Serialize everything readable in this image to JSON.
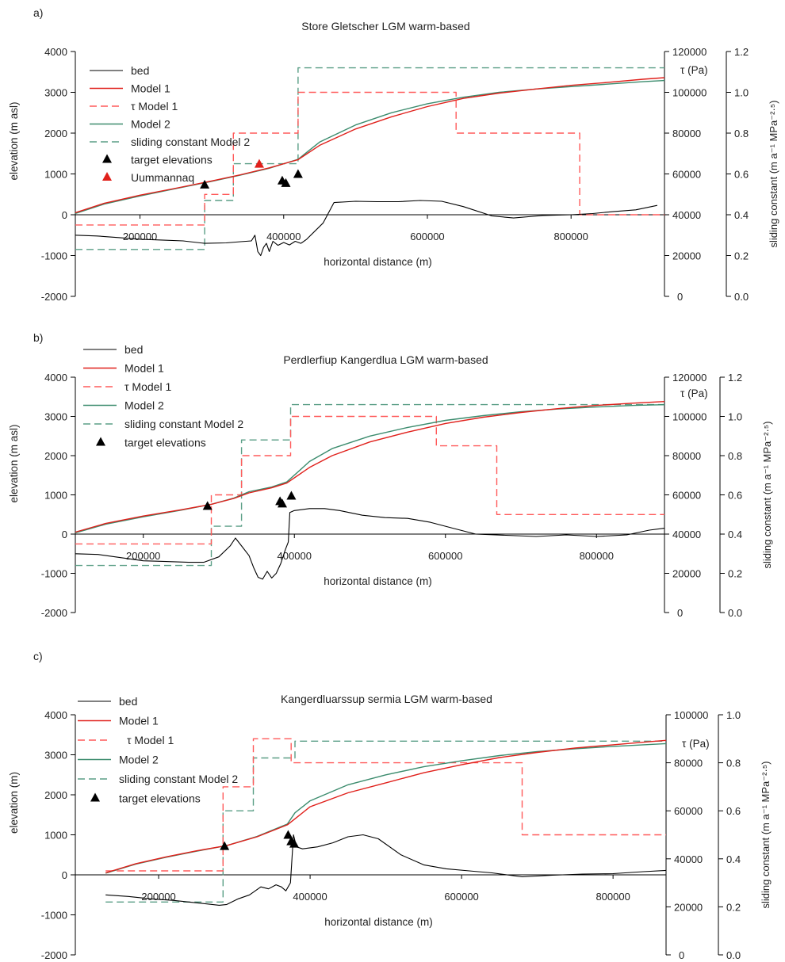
{
  "colors": {
    "bed": "#000000",
    "model1": "#e0201b",
    "tau": "#ff5a5a",
    "model2": "#3c8c6e",
    "sliding": "#5a9e86",
    "target": "#000000",
    "uummannaq": "#e0201b"
  },
  "chart_data": [
    {
      "type": "line",
      "panel_label": "a)",
      "title": "Store Gletscher LGM warm-based",
      "xlabel": "horizontal distance (m)",
      "ylabel": "elevation (m asl)",
      "ylabel_tau": "τ (Pa)",
      "ylabel_sliding": "sliding constant (m a⁻¹ MPa⁻²·⁵)",
      "xlim": [
        110000,
        930000
      ],
      "ylim": [
        -2000,
        4000
      ],
      "tau_lim": [
        0,
        120000
      ],
      "sliding_lim": [
        0,
        1.2
      ],
      "x_ticks": [
        200000,
        400000,
        600000,
        800000
      ],
      "x_tick_labels": [
        "200000",
        "400000",
        "600000",
        "800000"
      ],
      "y_ticks": [
        -2000,
        -1000,
        0,
        1000,
        2000,
        3000,
        4000
      ],
      "y_tick_labels": [
        "-2000",
        "-1000",
        "0",
        "1000",
        "2000",
        "3000",
        "4000"
      ],
      "tau_ticks": [
        0,
        20000,
        40000,
        60000,
        80000,
        100000,
        120000
      ],
      "tau_tick_labels": [
        "0",
        "20000",
        "40000",
        "60000",
        "80000",
        "100000",
        "120000"
      ],
      "sliding_ticks": [
        0,
        0.2,
        0.4,
        0.6,
        0.8,
        1.0,
        1.2
      ],
      "sliding_tick_labels": [
        "0.0",
        "0.2",
        "0.4",
        "0.6",
        "0.8",
        "1.0",
        "1.2"
      ],
      "legend": [
        "bed",
        "Model 1",
        "τ Model 1",
        "Model 2",
        "sliding constant Model 2",
        "target elevations",
        "Uummannaq"
      ],
      "series": [
        {
          "name": "bed",
          "x": [
            110000,
            140000,
            170000,
            200000,
            230000,
            260000,
            290000,
            320000,
            340000,
            355000,
            360000,
            364000,
            368000,
            372000,
            376000,
            380000,
            385000,
            392000,
            400000,
            408000,
            416000,
            424000,
            432000,
            455000,
            470000,
            500000,
            530000,
            560000,
            590000,
            620000,
            650000,
            690000,
            720000,
            760000,
            800000,
            830000,
            860000,
            890000,
            920000
          ],
          "y": [
            -500,
            -520,
            -560,
            -600,
            -620,
            -640,
            -700,
            -690,
            -660,
            -640,
            -500,
            -900,
            -1000,
            -800,
            -700,
            -900,
            -650,
            -750,
            -680,
            -740,
            -650,
            -700,
            -600,
            -200,
            300,
            330,
            320,
            320,
            350,
            330,
            200,
            -30,
            -80,
            -20,
            0,
            30,
            80,
            120,
            230
          ]
        },
        {
          "name": "Model 1",
          "x": [
            110000,
            150000,
            200000,
            250000,
            300000,
            340000,
            380000,
            420000,
            450000,
            500000,
            550000,
            600000,
            650000,
            700000,
            750000,
            800000,
            850000,
            900000,
            930000
          ],
          "y": [
            50,
            280,
            480,
            650,
            830,
            980,
            1150,
            1350,
            1700,
            2100,
            2400,
            2650,
            2850,
            2980,
            3080,
            3170,
            3240,
            3320,
            3360
          ]
        },
        {
          "name": "Model 2",
          "x": [
            110000,
            150000,
            200000,
            250000,
            300000,
            340000,
            380000,
            420000,
            450000,
            500000,
            550000,
            600000,
            650000,
            700000,
            750000,
            800000,
            850000,
            900000,
            930000
          ],
          "y": [
            30,
            260,
            460,
            640,
            820,
            970,
            1140,
            1360,
            1780,
            2200,
            2500,
            2720,
            2880,
            3000,
            3080,
            3140,
            3200,
            3260,
            3290
          ]
        },
        {
          "name": "τ Model 1",
          "x": [
            110000,
            290000,
            290000,
            330000,
            330000,
            420000,
            420000,
            640000,
            640000,
            812000,
            812000,
            930000
          ],
          "y": [
            35000,
            35000,
            50000,
            50000,
            80000,
            80000,
            100000,
            100000,
            80000,
            80000,
            40000,
            40000
          ]
        },
        {
          "name": "sliding constant Model 2",
          "x": [
            110000,
            290000,
            290000,
            330000,
            330000,
            420000,
            420000,
            930000
          ],
          "y": [
            0.23,
            0.23,
            0.47,
            0.47,
            0.65,
            0.65,
            1.12,
            1.12
          ]
        }
      ],
      "target_elevations": [
        {
          "x": 290000,
          "y": 720
        },
        {
          "x": 398000,
          "y": 820
        },
        {
          "x": 403000,
          "y": 760
        },
        {
          "x": 420000,
          "y": 980
        }
      ],
      "uummannaq": [
        {
          "x": 366000,
          "y": 1230
        }
      ]
    },
    {
      "type": "line",
      "panel_label": "b)",
      "title": "Perdlerfiup Kangerdlua LGM warm-based",
      "xlabel": "horizontal distance (m)",
      "ylabel": "elevation (m asl)",
      "ylabel_tau": "τ (Pa)",
      "ylabel_sliding": "sliding constant (m a⁻¹ MPa⁻²·⁵)",
      "xlim": [
        110000,
        890000
      ],
      "ylim": [
        -2000,
        4000
      ],
      "tau_lim": [
        0,
        120000
      ],
      "sliding_lim": [
        0,
        1.2
      ],
      "x_ticks": [
        200000,
        400000,
        600000,
        800000
      ],
      "x_tick_labels": [
        "200000",
        "400000",
        "600000",
        "800000"
      ],
      "y_ticks": [
        -2000,
        -1000,
        0,
        1000,
        2000,
        3000,
        4000
      ],
      "y_tick_labels": [
        "-2000",
        "-1000",
        "0",
        "1000",
        "2000",
        "3000",
        "4000"
      ],
      "tau_ticks": [
        0,
        20000,
        40000,
        60000,
        80000,
        100000,
        120000
      ],
      "tau_tick_labels": [
        "0",
        "20000",
        "40000",
        "60000",
        "80000",
        "100000",
        "120000"
      ],
      "sliding_ticks": [
        0,
        0.2,
        0.4,
        0.6,
        0.8,
        1.0,
        1.2
      ],
      "sliding_tick_labels": [
        "0.0",
        "0.2",
        "0.4",
        "0.6",
        "0.8",
        "1.0",
        "1.2"
      ],
      "legend": [
        "bed",
        "Model 1",
        "τ Model 1",
        "Model 2",
        "sliding constant Model 2",
        "target elevations"
      ],
      "series": [
        {
          "name": "bed",
          "x": [
            110000,
            140000,
            170000,
            200000,
            230000,
            260000,
            280000,
            300000,
            315000,
            322000,
            330000,
            340000,
            346000,
            352000,
            358000,
            364000,
            370000,
            376000,
            382000,
            388000,
            392000,
            394000,
            400000,
            420000,
            440000,
            460000,
            490000,
            520000,
            550000,
            580000,
            610000,
            640000,
            680000,
            720000,
            760000,
            800000,
            840000,
            870000,
            890000
          ],
          "y": [
            -500,
            -520,
            -600,
            -680,
            -700,
            -720,
            -720,
            -580,
            -300,
            -100,
            -300,
            -550,
            -850,
            -1100,
            -1150,
            -950,
            -1120,
            -1000,
            -750,
            -400,
            -200,
            550,
            600,
            650,
            650,
            600,
            480,
            420,
            400,
            300,
            150,
            0,
            -30,
            -60,
            -20,
            -60,
            -20,
            100,
            150
          ]
        },
        {
          "name": "Model 1",
          "x": [
            110000,
            150000,
            200000,
            250000,
            290000,
            320000,
            340000,
            370000,
            390000,
            420000,
            450000,
            500000,
            550000,
            600000,
            650000,
            700000,
            750000,
            800000,
            850000,
            890000
          ],
          "y": [
            50,
            270,
            460,
            620,
            760,
            910,
            1050,
            1180,
            1300,
            1700,
            2000,
            2350,
            2600,
            2820,
            2980,
            3100,
            3200,
            3280,
            3340,
            3380
          ]
        },
        {
          "name": "Model 2",
          "x": [
            110000,
            150000,
            200000,
            250000,
            290000,
            320000,
            340000,
            370000,
            390000,
            420000,
            450000,
            500000,
            550000,
            600000,
            650000,
            700000,
            750000,
            800000,
            850000,
            890000
          ],
          "y": [
            30,
            250,
            440,
            610,
            760,
            920,
            1080,
            1200,
            1330,
            1850,
            2180,
            2500,
            2720,
            2900,
            3020,
            3120,
            3190,
            3240,
            3280,
            3300
          ]
        },
        {
          "name": "τ Model 1",
          "x": [
            110000,
            290000,
            290000,
            330000,
            330000,
            395000,
            395000,
            588000,
            588000,
            668000,
            668000,
            890000
          ],
          "y": [
            35000,
            35000,
            60000,
            60000,
            80000,
            80000,
            100000,
            100000,
            85000,
            85000,
            50000,
            50000
          ]
        },
        {
          "name": "sliding constant Model 2",
          "x": [
            110000,
            290000,
            290000,
            330000,
            330000,
            395000,
            395000,
            890000
          ],
          "y": [
            0.24,
            0.24,
            0.44,
            0.44,
            0.88,
            0.88,
            1.06,
            1.06
          ]
        }
      ],
      "target_elevations": [
        {
          "x": 285000,
          "y": 700
        },
        {
          "x": 381000,
          "y": 820
        },
        {
          "x": 384000,
          "y": 760
        },
        {
          "x": 396000,
          "y": 960
        }
      ]
    },
    {
      "type": "line",
      "panel_label": "c)",
      "title": "Kangerdluarssup sermia LGM warm-based",
      "xlabel": "horizontal distance (m)",
      "ylabel": "elevation (m)",
      "ylabel_tau": "τ  (Pa)",
      "ylabel_sliding": "sliding constant (m a⁻¹ MPa⁻²·⁵)",
      "xlim": [
        90000,
        870000
      ],
      "ylim": [
        -2000,
        4000
      ],
      "tau_lim": [
        0,
        100000
      ],
      "sliding_lim": [
        0,
        1.0
      ],
      "x_ticks": [
        200000,
        400000,
        600000,
        800000
      ],
      "x_tick_labels": [
        "200000",
        "400000",
        "600000",
        "800000"
      ],
      "y_ticks": [
        -2000,
        -1000,
        0,
        1000,
        2000,
        3000,
        4000
      ],
      "y_tick_labels": [
        "-2000",
        "-1000",
        "0",
        "1000",
        "2000",
        "3000",
        "4000"
      ],
      "tau_ticks": [
        0,
        20000,
        40000,
        60000,
        80000,
        100000
      ],
      "tau_tick_labels": [
        "0",
        "20000",
        "40000",
        "60000",
        "80000",
        "100000"
      ],
      "sliding_ticks": [
        0,
        0.2,
        0.4,
        0.6,
        0.8,
        1.0
      ],
      "sliding_tick_labels": [
        "0.0",
        "0.2",
        "0.4",
        "0.6",
        "0.8",
        "1.0"
      ],
      "legend": [
        "bed",
        "Model 1",
        "τ Model 1",
        "Model 2",
        "sliding constant Model 2",
        "target elevations"
      ],
      "series": [
        {
          "name": "bed",
          "x": [
            130000,
            160000,
            190000,
            220000,
            250000,
            280000,
            290000,
            305000,
            320000,
            335000,
            345000,
            355000,
            362000,
            368000,
            374000,
            378000,
            382000,
            390000,
            410000,
            430000,
            450000,
            470000,
            490000,
            520000,
            550000,
            580000,
            610000,
            640000,
            680000,
            720000,
            760000,
            800000,
            840000,
            870000
          ],
          "y": [
            -500,
            -540,
            -600,
            -640,
            -700,
            -760,
            -740,
            -600,
            -500,
            -300,
            -350,
            -250,
            -300,
            -400,
            -200,
            1000,
            700,
            650,
            700,
            800,
            950,
            1000,
            900,
            500,
            250,
            150,
            100,
            50,
            -50,
            -10,
            20,
            30,
            80,
            110
          ]
        },
        {
          "name": "Model 1",
          "x": [
            130000,
            170000,
            210000,
            250000,
            290000,
            330000,
            370000,
            380000,
            400000,
            450000,
            500000,
            550000,
            600000,
            650000,
            700000,
            750000,
            800000,
            850000,
            870000
          ],
          "y": [
            50,
            280,
            450,
            600,
            730,
            950,
            1250,
            1400,
            1700,
            2050,
            2300,
            2550,
            2750,
            2930,
            3060,
            3170,
            3250,
            3330,
            3360
          ]
        },
        {
          "name": "Model 2",
          "x": [
            130000,
            170000,
            210000,
            250000,
            290000,
            330000,
            370000,
            380000,
            400000,
            450000,
            500000,
            550000,
            600000,
            650000,
            700000,
            750000,
            800000,
            850000,
            870000
          ],
          "y": [
            40,
            270,
            440,
            590,
            730,
            960,
            1270,
            1550,
            1850,
            2250,
            2500,
            2700,
            2850,
            2980,
            3080,
            3150,
            3210,
            3260,
            3280
          ]
        },
        {
          "name": "τ Model 1",
          "x": [
            130000,
            285000,
            285000,
            325000,
            325000,
            375000,
            375000,
            680000,
            680000,
            870000
          ],
          "y": [
            35000,
            35000,
            70000,
            70000,
            90000,
            90000,
            80000,
            80000,
            50000,
            50000
          ]
        },
        {
          "name": "sliding constant Model 2",
          "x": [
            130000,
            285000,
            285000,
            325000,
            325000,
            375000,
            375000,
            380000,
            380000,
            870000
          ],
          "y": [
            0.22,
            0.22,
            0.6,
            0.6,
            0.82,
            0.82,
            0.82,
            0.82,
            0.89,
            0.89
          ]
        }
      ],
      "target_elevations": [
        {
          "x": 287000,
          "y": 700
        },
        {
          "x": 371000,
          "y": 980
        },
        {
          "x": 375000,
          "y": 820
        },
        {
          "x": 379000,
          "y": 760
        }
      ]
    }
  ]
}
